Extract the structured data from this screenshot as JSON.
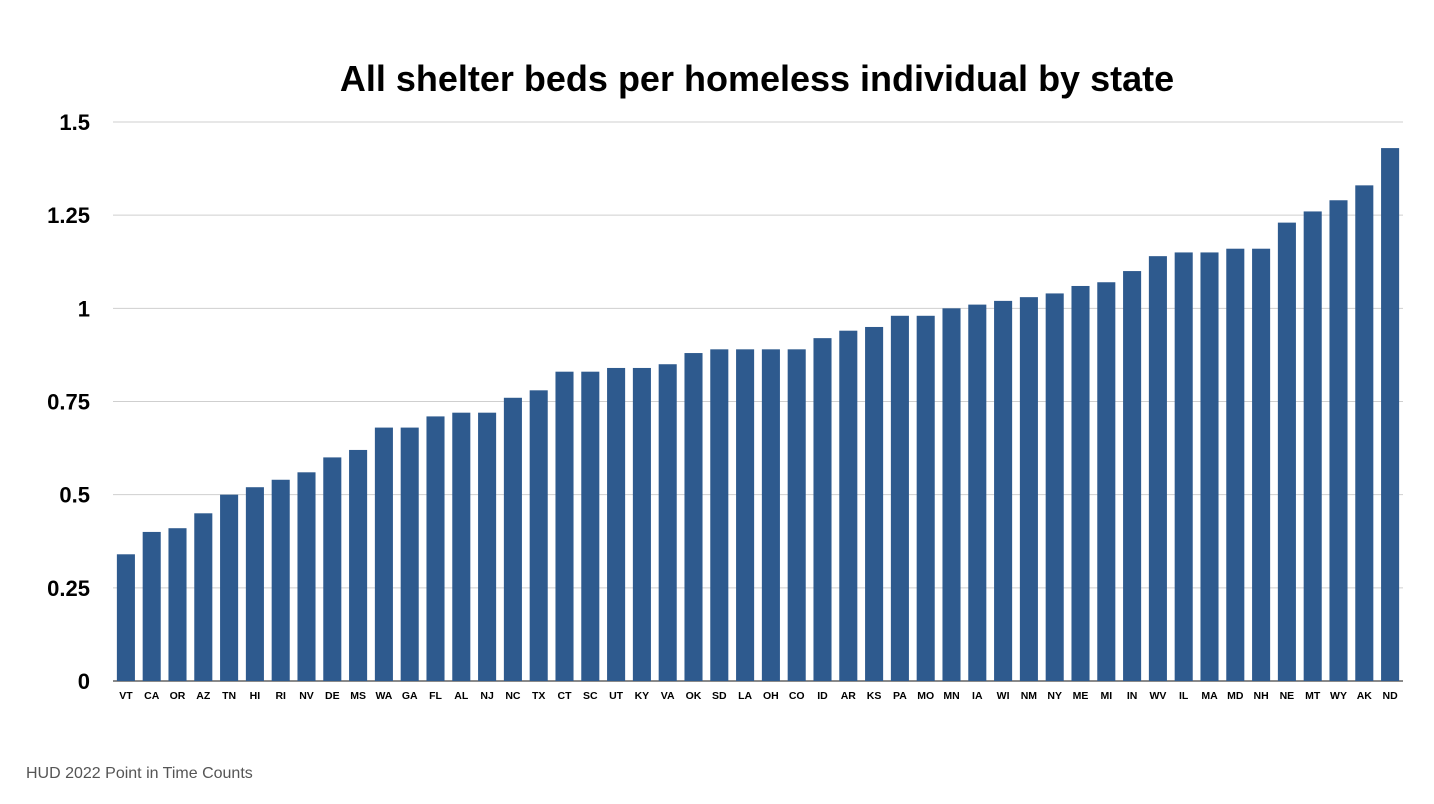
{
  "chart_data": {
    "type": "bar",
    "title": "All shelter beds per homeless individual by state",
    "xlabel": "",
    "ylabel": "",
    "ylim": [
      0,
      1.5
    ],
    "yticks": [
      0,
      0.25,
      0.5,
      0.75,
      1,
      1.25,
      1.5
    ],
    "ytick_labels": [
      "0",
      "0.25",
      "0.5",
      "0.75",
      "1",
      "1.25",
      "1.5"
    ],
    "grid": true,
    "legend": "none",
    "bar_color": "#2e5a8e",
    "categories": [
      "VT",
      "CA",
      "OR",
      "AZ",
      "TN",
      "HI",
      "RI",
      "NV",
      "DE",
      "MS",
      "WA",
      "GA",
      "FL",
      "AL",
      "NJ",
      "NC",
      "TX",
      "CT",
      "SC",
      "UT",
      "KY",
      "VA",
      "OK",
      "SD",
      "LA",
      "OH",
      "CO",
      "ID",
      "AR",
      "KS",
      "PA",
      "MO",
      "MN",
      "IA",
      "WI",
      "NM",
      "NY",
      "ME",
      "MI",
      "IN",
      "WV",
      "IL",
      "MA",
      "MD",
      "NH",
      "NE",
      "MT",
      "WY",
      "AK",
      "ND"
    ],
    "values": [
      0.34,
      0.4,
      0.41,
      0.45,
      0.5,
      0.52,
      0.54,
      0.56,
      0.6,
      0.62,
      0.68,
      0.68,
      0.71,
      0.72,
      0.72,
      0.76,
      0.78,
      0.83,
      0.83,
      0.84,
      0.84,
      0.85,
      0.88,
      0.89,
      0.89,
      0.89,
      0.89,
      0.92,
      0.94,
      0.95,
      0.98,
      0.98,
      1.0,
      1.01,
      1.02,
      1.03,
      1.04,
      1.06,
      1.07,
      1.1,
      1.14,
      1.15,
      1.15,
      1.16,
      1.16,
      1.23,
      1.26,
      1.29,
      1.33,
      1.43
    ]
  },
  "source_note": "HUD 2022 Point in Time Counts"
}
